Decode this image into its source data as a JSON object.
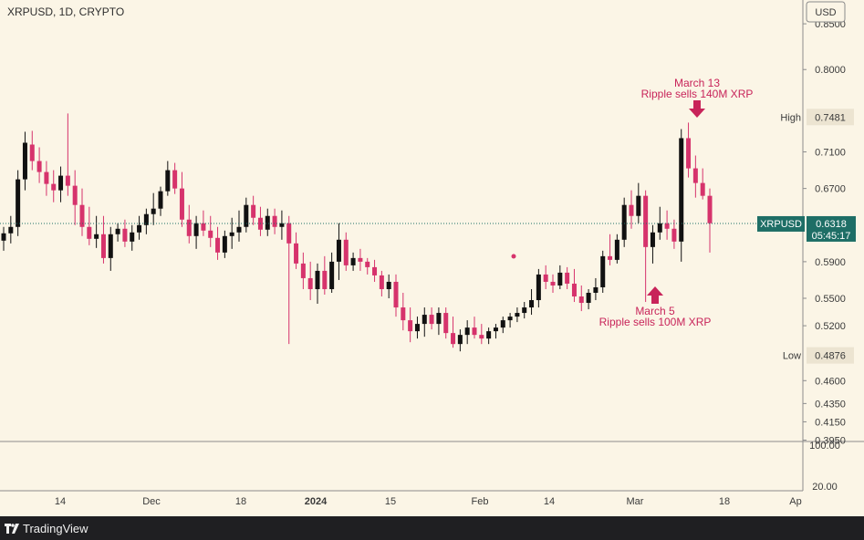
{
  "chart_data": {
    "type": "candlestick",
    "title": "XRPUSD, 1D, CRYPTO",
    "currency_button": "USD",
    "price_axis": {
      "range": [
        0.3935,
        0.876
      ],
      "ticks": [
        "0.8500",
        "0.8000",
        "0.7100",
        "0.6700",
        "0.5900",
        "0.5500",
        "0.5200",
        "0.4600",
        "0.4350",
        "0.4150",
        "0.3950"
      ]
    },
    "volume_axis": {
      "ticks": [
        "100.00",
        "20.00"
      ]
    },
    "time_axis": {
      "ticks": [
        "14",
        "Dec",
        "18",
        "2024",
        "15",
        "Feb",
        "14",
        "Mar",
        "18",
        "Ap"
      ]
    },
    "high": {
      "label": "High",
      "value": "0.7481"
    },
    "low": {
      "label": "Low",
      "value": "0.4876"
    },
    "last": {
      "symbol": "XRPUSD",
      "value": "0.6318",
      "countdown": "05:45:17"
    },
    "annotations": [
      {
        "line1": "March 13",
        "line2": "Ripple sells 140M XRP"
      },
      {
        "line1": "March 5",
        "line2": "Ripple sells 100M XRP"
      }
    ],
    "colors": {
      "up": "#111111",
      "down": "#d6336c",
      "annotation": "#c8245a",
      "badge": "#1e6e66",
      "background": "#fbf5e6"
    },
    "candles": [
      [
        0.613,
        0.628,
        0.602,
        0.621
      ],
      [
        0.621,
        0.64,
        0.61,
        0.628
      ],
      [
        0.628,
        0.69,
        0.618,
        0.68
      ],
      [
        0.68,
        0.732,
        0.668,
        0.72
      ],
      [
        0.718,
        0.733,
        0.69,
        0.7
      ],
      [
        0.7,
        0.715,
        0.676,
        0.688
      ],
      [
        0.688,
        0.7,
        0.662,
        0.675
      ],
      [
        0.675,
        0.69,
        0.655,
        0.668
      ],
      [
        0.668,
        0.694,
        0.655,
        0.684
      ],
      [
        0.684,
        0.752,
        0.662,
        0.673
      ],
      [
        0.673,
        0.69,
        0.63,
        0.652
      ],
      [
        0.652,
        0.67,
        0.618,
        0.628
      ],
      [
        0.628,
        0.65,
        0.608,
        0.615
      ],
      [
        0.615,
        0.64,
        0.605,
        0.62
      ],
      [
        0.62,
        0.64,
        0.588,
        0.594
      ],
      [
        0.594,
        0.628,
        0.58,
        0.62
      ],
      [
        0.62,
        0.632,
        0.612,
        0.626
      ],
      [
        0.626,
        0.636,
        0.606,
        0.612
      ],
      [
        0.612,
        0.63,
        0.602,
        0.622
      ],
      [
        0.622,
        0.64,
        0.614,
        0.63
      ],
      [
        0.63,
        0.648,
        0.62,
        0.642
      ],
      [
        0.642,
        0.665,
        0.63,
        0.648
      ],
      [
        0.648,
        0.672,
        0.64,
        0.667
      ],
      [
        0.667,
        0.7,
        0.662,
        0.69
      ],
      [
        0.69,
        0.698,
        0.664,
        0.67
      ],
      [
        0.67,
        0.688,
        0.628,
        0.636
      ],
      [
        0.636,
        0.652,
        0.61,
        0.618
      ],
      [
        0.618,
        0.64,
        0.604,
        0.632
      ],
      [
        0.632,
        0.646,
        0.618,
        0.624
      ],
      [
        0.624,
        0.64,
        0.606,
        0.616
      ],
      [
        0.616,
        0.628,
        0.592,
        0.6
      ],
      [
        0.6,
        0.624,
        0.594,
        0.618
      ],
      [
        0.618,
        0.638,
        0.604,
        0.622
      ],
      [
        0.622,
        0.646,
        0.612,
        0.628
      ],
      [
        0.628,
        0.66,
        0.622,
        0.652
      ],
      [
        0.652,
        0.662,
        0.63,
        0.638
      ],
      [
        0.638,
        0.65,
        0.618,
        0.625
      ],
      [
        0.625,
        0.648,
        0.618,
        0.64
      ],
      [
        0.64,
        0.648,
        0.62,
        0.628
      ],
      [
        0.628,
        0.646,
        0.614,
        0.632
      ],
      [
        0.632,
        0.64,
        0.5,
        0.61
      ],
      [
        0.61,
        0.622,
        0.582,
        0.588
      ],
      [
        0.588,
        0.6,
        0.56,
        0.572
      ],
      [
        0.572,
        0.59,
        0.548,
        0.56
      ],
      [
        0.56,
        0.588,
        0.544,
        0.58
      ],
      [
        0.58,
        0.596,
        0.554,
        0.56
      ],
      [
        0.56,
        0.6,
        0.556,
        0.59
      ],
      [
        0.59,
        0.632,
        0.57,
        0.614
      ],
      [
        0.614,
        0.622,
        0.58,
        0.586
      ],
      [
        0.586,
        0.6,
        0.58,
        0.594
      ],
      [
        0.594,
        0.604,
        0.58,
        0.59
      ],
      [
        0.59,
        0.594,
        0.576,
        0.584
      ],
      [
        0.584,
        0.592,
        0.568,
        0.575
      ],
      [
        0.575,
        0.58,
        0.552,
        0.56
      ],
      [
        0.56,
        0.576,
        0.55,
        0.568
      ],
      [
        0.568,
        0.576,
        0.53,
        0.54
      ],
      [
        0.54,
        0.556,
        0.515,
        0.526
      ],
      [
        0.526,
        0.54,
        0.502,
        0.514
      ],
      [
        0.514,
        0.53,
        0.506,
        0.522
      ],
      [
        0.522,
        0.54,
        0.508,
        0.532
      ],
      [
        0.532,
        0.54,
        0.516,
        0.522
      ],
      [
        0.522,
        0.54,
        0.51,
        0.534
      ],
      [
        0.534,
        0.54,
        0.506,
        0.512
      ],
      [
        0.512,
        0.53,
        0.496,
        0.5
      ],
      [
        0.5,
        0.516,
        0.492,
        0.51
      ],
      [
        0.51,
        0.526,
        0.5,
        0.518
      ],
      [
        0.518,
        0.53,
        0.506,
        0.51
      ],
      [
        0.51,
        0.522,
        0.5,
        0.506
      ],
      [
        0.506,
        0.518,
        0.5,
        0.514
      ],
      [
        0.514,
        0.522,
        0.506,
        0.518
      ],
      [
        0.518,
        0.53,
        0.512,
        0.526
      ],
      [
        0.526,
        0.534,
        0.518,
        0.53
      ],
      [
        0.53,
        0.54,
        0.524,
        0.534
      ],
      [
        0.534,
        0.546,
        0.528,
        0.54
      ],
      [
        0.54,
        0.56,
        0.532,
        0.548
      ],
      [
        0.548,
        0.582,
        0.54,
        0.576
      ],
      [
        0.576,
        0.586,
        0.56,
        0.568
      ],
      [
        0.568,
        0.576,
        0.556,
        0.564
      ],
      [
        0.564,
        0.586,
        0.56,
        0.578
      ],
      [
        0.578,
        0.584,
        0.56,
        0.566
      ],
      [
        0.566,
        0.582,
        0.546,
        0.552
      ],
      [
        0.552,
        0.564,
        0.536,
        0.545
      ],
      [
        0.545,
        0.56,
        0.538,
        0.556
      ],
      [
        0.556,
        0.572,
        0.548,
        0.562
      ],
      [
        0.562,
        0.602,
        0.556,
        0.596
      ],
      [
        0.596,
        0.62,
        0.586,
        0.592
      ],
      [
        0.592,
        0.62,
        0.588,
        0.614
      ],
      [
        0.614,
        0.66,
        0.606,
        0.652
      ],
      [
        0.652,
        0.668,
        0.626,
        0.64
      ],
      [
        0.64,
        0.676,
        0.632,
        0.662
      ],
      [
        0.662,
        0.668,
        0.546,
        0.606
      ],
      [
        0.606,
        0.63,
        0.588,
        0.622
      ],
      [
        0.622,
        0.65,
        0.614,
        0.632
      ],
      [
        0.632,
        0.646,
        0.614,
        0.626
      ],
      [
        0.626,
        0.636,
        0.604,
        0.612
      ],
      [
        0.612,
        0.735,
        0.59,
        0.725
      ],
      [
        0.725,
        0.742,
        0.682,
        0.692
      ],
      [
        0.692,
        0.706,
        0.66,
        0.676
      ],
      [
        0.676,
        0.692,
        0.658,
        0.662
      ],
      [
        0.662,
        0.67,
        0.6,
        0.632
      ]
    ]
  }
}
